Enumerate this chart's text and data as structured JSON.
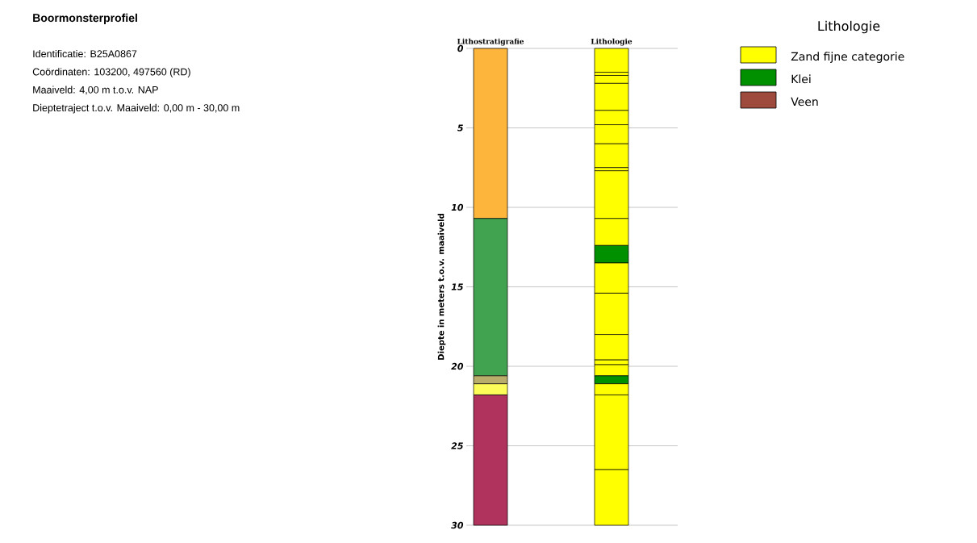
{
  "chart_data": {
    "type": "bar",
    "stacked": true,
    "title": "Boormonsterprofiel",
    "annotations": [
      "Identificatie: B25A0867",
      "Coördinaten: 103200, 497560 (RD)",
      "Maaiveld: 4,00 m t.o.v. NAP",
      "Dieptetraject t.o.v. Maaiveld: 0,00 m - 30,00 m"
    ],
    "categories": [
      "Lithostratigrafie",
      "Lithologie"
    ],
    "ylabel": "Diepte in meters t.o.v. maaiveld",
    "ylim": [
      30,
      0
    ],
    "yticks": [
      0,
      5,
      10,
      15,
      20,
      25,
      30
    ],
    "grid": "y",
    "legend": "top right",
    "legend_title": "Lithologie",
    "series": [
      {
        "color": "#fdb53c",
        "values": [
          10.7,
          null
        ]
      },
      {
        "color": "#41a34f",
        "values": [
          9.9,
          null
        ]
      },
      {
        "color": "#b8ad6a",
        "values": [
          0.5,
          null
        ]
      },
      {
        "color": "#fdfd5a",
        "values": [
          0.7,
          null
        ]
      },
      {
        "color": "#b0335e",
        "values": [
          8.2,
          null
        ]
      },
      {
        "name": "Zand fijne categorie",
        "color": "#ffff00",
        "values": [
          null,
          1.5
        ]
      },
      {
        "color": "#ffff00",
        "values": [
          null,
          0.2
        ]
      },
      {
        "color": "#ffff00",
        "values": [
          null,
          0.5
        ]
      },
      {
        "color": "#ffff00",
        "values": [
          null,
          1.7
        ]
      },
      {
        "color": "#ffff00",
        "values": [
          null,
          0.9
        ]
      },
      {
        "color": "#ffff00",
        "values": [
          null,
          1.2
        ]
      },
      {
        "color": "#ffff00",
        "values": [
          null,
          1.5
        ]
      },
      {
        "color": "#ffff00",
        "values": [
          null,
          0.2
        ]
      },
      {
        "color": "#ffff00",
        "values": [
          null,
          3.0
        ]
      },
      {
        "color": "#ffff00",
        "values": [
          null,
          1.7
        ]
      },
      {
        "name": "Klei",
        "color": "#009000",
        "values": [
          null,
          1.1
        ]
      },
      {
        "color": "#ffff00",
        "values": [
          null,
          1.9
        ]
      },
      {
        "color": "#ffff00",
        "values": [
          null,
          2.6
        ]
      },
      {
        "color": "#ffff00",
        "values": [
          null,
          1.6
        ]
      },
      {
        "color": "#ffff00",
        "values": [
          null,
          0.3
        ]
      },
      {
        "color": "#ffff00",
        "values": [
          null,
          0.7
        ]
      },
      {
        "color": "#009000",
        "values": [
          null,
          0.5
        ]
      },
      {
        "color": "#ffff00",
        "values": [
          null,
          0.7
        ]
      },
      {
        "color": "#ffff00",
        "values": [
          null,
          4.7
        ]
      },
      {
        "color": "#ffff00",
        "values": [
          null,
          3.5
        ]
      },
      {
        "name": "Veen",
        "color": "#9e4a3c",
        "values": [
          null,
          null
        ]
      }
    ]
  }
}
